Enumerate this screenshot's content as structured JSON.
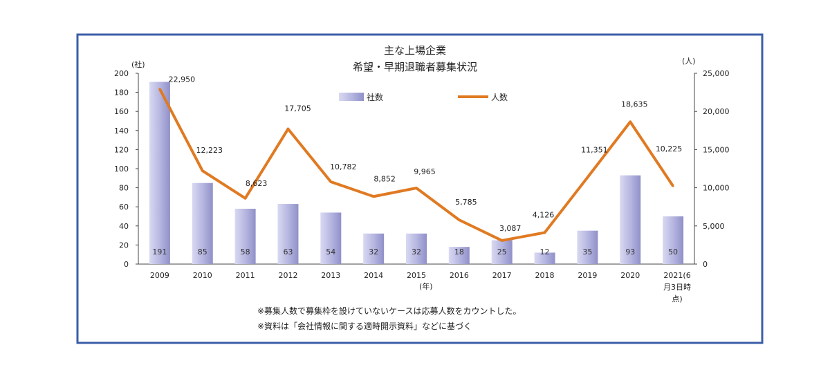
{
  "chart_data": {
    "type": "bar+line",
    "title": "主な上場企業",
    "subtitle": "希望・早期退職者募集状況",
    "categories": [
      "2009",
      "2010",
      "2011",
      "2012",
      "2013",
      "2014",
      "2015",
      "2016",
      "2017",
      "2018",
      "2019",
      "2020",
      "2021(6月3日時点)"
    ],
    "category_label_lines": [
      [
        "2009"
      ],
      [
        "2010"
      ],
      [
        "2011"
      ],
      [
        "2012"
      ],
      [
        "2013"
      ],
      [
        "2014"
      ],
      [
        "2015"
      ],
      [
        "2016"
      ],
      [
        "2017"
      ],
      [
        "2018"
      ],
      [
        "2019"
      ],
      [
        "2020"
      ],
      [
        "2021(6",
        "月3日時",
        "点)"
      ]
    ],
    "xlabel": "(年)",
    "y_left": {
      "unit_label": "(社)",
      "range": [
        0,
        200
      ],
      "ticks": [
        "0",
        "20",
        "40",
        "60",
        "80",
        "100",
        "120",
        "140",
        "160",
        "180",
        "200"
      ]
    },
    "y_right": {
      "unit_label": "(人)",
      "range": [
        0,
        25000
      ],
      "ticks": [
        "0",
        "5,000",
        "10,000",
        "15,000",
        "20,000",
        "25,000"
      ]
    },
    "series": [
      {
        "name": "社数",
        "type": "bar",
        "axis": "left",
        "color": "#b8b8e0",
        "values": [
          191,
          85,
          58,
          63,
          54,
          32,
          32,
          18,
          25,
          12,
          35,
          93,
          50
        ],
        "labels": [
          "191",
          "85",
          "58",
          "63",
          "54",
          "32",
          "32",
          "18",
          "25",
          "12",
          "35",
          "93",
          "50"
        ]
      },
      {
        "name": "人数",
        "type": "line",
        "axis": "right",
        "color": "#e07a22",
        "values": [
          22950,
          12223,
          8623,
          17705,
          10782,
          8852,
          9965,
          5785,
          3087,
          4126,
          11351,
          18635,
          10225
        ],
        "labels": [
          "22,950",
          "12,223",
          "8,623",
          "17,705",
          "10,782",
          "8,852",
          "9,965",
          "5,785",
          "3,087",
          "4,126",
          "11,351",
          "18,635",
          "10,225"
        ]
      }
    ],
    "legend": {
      "placement": "top-center"
    },
    "notes": [
      "※募集人数で募集枠を設けていないケースは応募人数をカウントした。",
      "※資料は「会社情報に関する適時開示資料」などに基づく"
    ],
    "grid": false
  },
  "colors": {
    "border": "#3b5ea8",
    "bar": "#b8b8e0",
    "line": "#e07a22"
  }
}
